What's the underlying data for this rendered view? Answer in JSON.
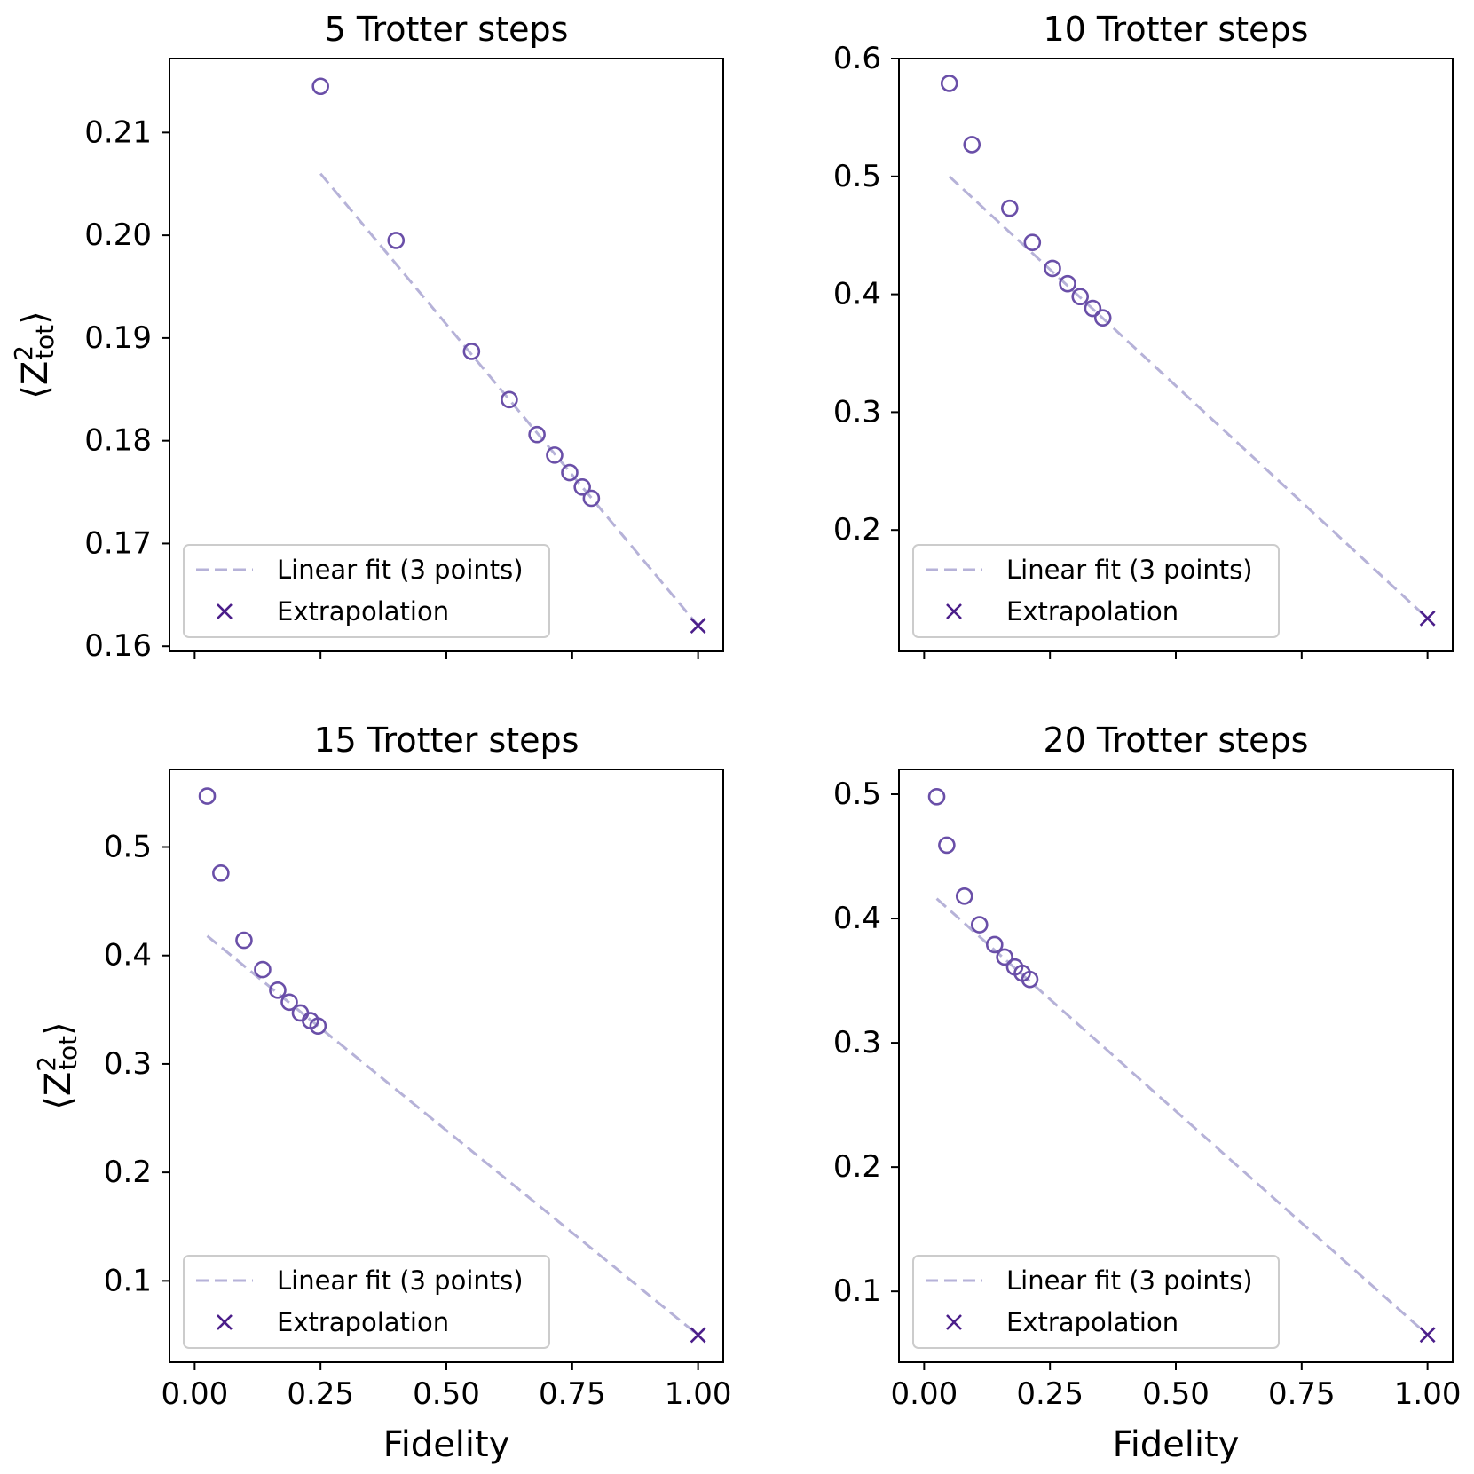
{
  "colors": {
    "points": "#6a4fa8",
    "fit_line": "#b6b2d8",
    "extrapolation": "#4b1e8a"
  },
  "chart_data": [
    {
      "type": "scatter",
      "title": "5 Trotter steps",
      "xlabel": "",
      "ylabel": "⟨Z²tot⟩",
      "xlim": [
        -0.05,
        1.05
      ],
      "ylim": [
        0.1595,
        0.2172
      ],
      "xticks": [
        "0.00",
        "0.25",
        "0.50",
        "0.75",
        "1.00"
      ],
      "xtick_values": [
        0,
        0.25,
        0.5,
        0.75,
        1.0
      ],
      "show_xtick_labels": false,
      "yticks": [
        "0.16",
        "0.17",
        "0.18",
        "0.19",
        "0.20",
        "0.21"
      ],
      "ytick_values": [
        0.16,
        0.17,
        0.18,
        0.19,
        0.2,
        0.21
      ],
      "points": {
        "x": [
          0.25,
          0.4,
          0.55,
          0.625,
          0.68,
          0.715,
          0.745,
          0.77,
          0.788
        ],
        "y": [
          0.2145,
          0.1995,
          0.1887,
          0.184,
          0.1806,
          0.1786,
          0.1769,
          0.1755,
          0.1744
        ]
      },
      "fit": {
        "x": [
          0.25,
          1.0
        ],
        "y": [
          0.206,
          0.162
        ]
      },
      "extrapolation": {
        "x": 1.0,
        "y": 0.162
      },
      "legend": {
        "placement": "lower-left",
        "entries": [
          "Linear fit (3 points)",
          "Extrapolation"
        ]
      }
    },
    {
      "type": "scatter",
      "title": "10 Trotter steps",
      "xlabel": "",
      "ylabel": "",
      "xlim": [
        -0.05,
        1.05
      ],
      "ylim": [
        0.097,
        0.6
      ],
      "xticks": [
        "0.00",
        "0.25",
        "0.50",
        "0.75",
        "1.00"
      ],
      "xtick_values": [
        0,
        0.25,
        0.5,
        0.75,
        1.0
      ],
      "show_xtick_labels": false,
      "yticks": [
        "0.2",
        "0.3",
        "0.4",
        "0.5",
        "0.6"
      ],
      "ytick_values": [
        0.2,
        0.3,
        0.4,
        0.5,
        0.6
      ],
      "points": {
        "x": [
          0.05,
          0.095,
          0.17,
          0.215,
          0.255,
          0.285,
          0.31,
          0.335,
          0.355
        ],
        "y": [
          0.579,
          0.527,
          0.473,
          0.444,
          0.422,
          0.409,
          0.398,
          0.388,
          0.38
        ]
      },
      "fit": {
        "x": [
          0.05,
          1.0
        ],
        "y": [
          0.5,
          0.125
        ]
      },
      "extrapolation": {
        "x": 1.0,
        "y": 0.125
      },
      "legend": {
        "placement": "lower-left",
        "entries": [
          "Linear fit (3 points)",
          "Extrapolation"
        ]
      }
    },
    {
      "type": "scatter",
      "title": "15 Trotter steps",
      "xlabel": "Fidelity",
      "ylabel": "⟨Z²tot⟩",
      "xlim": [
        -0.05,
        1.05
      ],
      "ylim": [
        0.025,
        0.5716
      ],
      "xticks": [
        "0.00",
        "0.25",
        "0.50",
        "0.75",
        "1.00"
      ],
      "xtick_values": [
        0,
        0.25,
        0.5,
        0.75,
        1.0
      ],
      "show_xtick_labels": true,
      "yticks": [
        "0.1",
        "0.2",
        "0.3",
        "0.4",
        "0.5"
      ],
      "ytick_values": [
        0.1,
        0.2,
        0.3,
        0.4,
        0.5
      ],
      "points": {
        "x": [
          0.025,
          0.052,
          0.098,
          0.135,
          0.165,
          0.188,
          0.21,
          0.23,
          0.245
        ],
        "y": [
          0.547,
          0.476,
          0.414,
          0.387,
          0.368,
          0.357,
          0.347,
          0.34,
          0.335
        ]
      },
      "fit": {
        "x": [
          0.025,
          1.0
        ],
        "y": [
          0.418,
          0.05
        ]
      },
      "extrapolation": {
        "x": 1.0,
        "y": 0.05
      },
      "legend": {
        "placement": "lower-left",
        "entries": [
          "Linear fit (3 points)",
          "Extrapolation"
        ]
      }
    },
    {
      "type": "scatter",
      "title": "20 Trotter steps",
      "xlabel": "Fidelity",
      "ylabel": "",
      "xlim": [
        -0.05,
        1.05
      ],
      "ylim": [
        0.043,
        0.52
      ],
      "xticks": [
        "0.00",
        "0.25",
        "0.50",
        "0.75",
        "1.00"
      ],
      "xtick_values": [
        0,
        0.25,
        0.5,
        0.75,
        1.0
      ],
      "show_xtick_labels": true,
      "yticks": [
        "0.1",
        "0.2",
        "0.3",
        "0.4",
        "0.5"
      ],
      "ytick_values": [
        0.1,
        0.2,
        0.3,
        0.4,
        0.5
      ],
      "points": {
        "x": [
          0.025,
          0.045,
          0.08,
          0.11,
          0.14,
          0.16,
          0.18,
          0.195,
          0.21
        ],
        "y": [
          0.498,
          0.459,
          0.418,
          0.395,
          0.379,
          0.369,
          0.361,
          0.356,
          0.351
        ]
      },
      "fit": {
        "x": [
          0.025,
          1.0
        ],
        "y": [
          0.416,
          0.065
        ]
      },
      "extrapolation": {
        "x": 1.0,
        "y": 0.065
      },
      "legend": {
        "placement": "lower-left",
        "entries": [
          "Linear fit (3 points)",
          "Extrapolation"
        ]
      }
    }
  ]
}
